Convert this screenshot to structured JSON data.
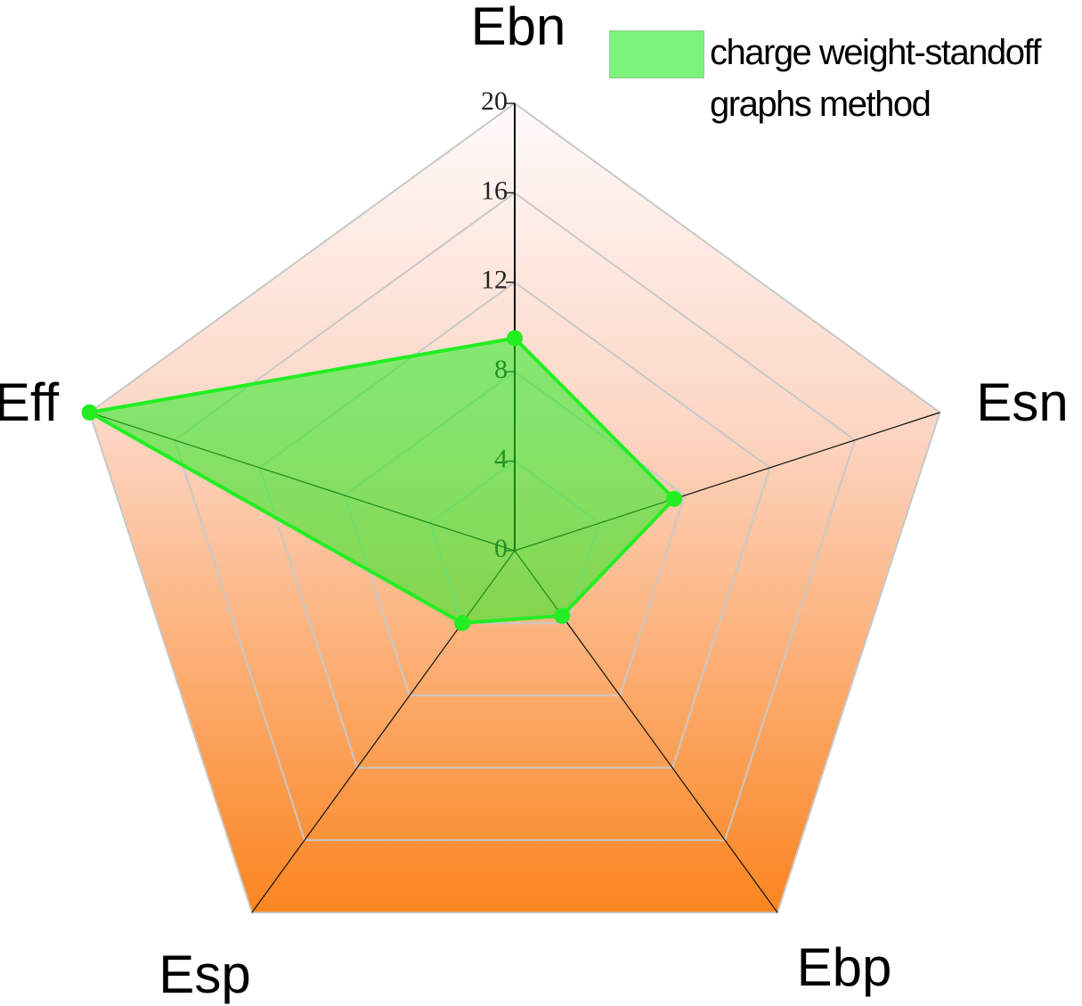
{
  "chart_data": {
    "type": "radar",
    "categories": [
      "Ebn",
      "Esn",
      "Ebp",
      "Esp",
      "Eff"
    ],
    "series": [
      {
        "name": "charge weight-standoff graphs method",
        "color": "#22ee22",
        "values": [
          9.5,
          7.5,
          3.6,
          4.0,
          20
        ]
      }
    ],
    "ylim": [
      0,
      20
    ],
    "yticks": [
      0,
      4,
      8,
      12,
      16,
      20
    ],
    "grid": true,
    "legend": "top-right"
  }
}
